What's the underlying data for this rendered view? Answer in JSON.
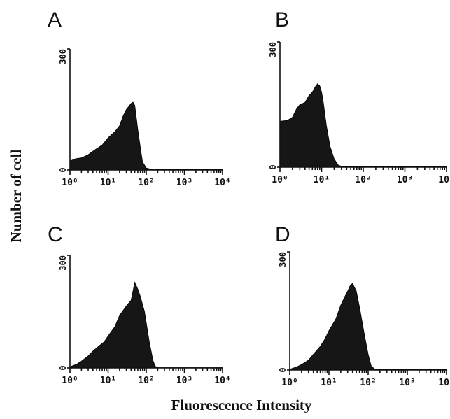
{
  "chart_data": {
    "type": "histogram-grid",
    "xlabel": "Fluorescence Intensity",
    "ylabel": "Number of cell",
    "x_scale": "log",
    "x_ticks": [
      "10⁰",
      "10¹",
      "10²",
      "10³",
      "10⁴"
    ],
    "y_ticks": [
      "0",
      "300"
    ],
    "ylim": [
      0,
      300
    ],
    "xlim": [
      1,
      10000
    ],
    "panels": [
      {
        "label": "A",
        "series": [
          {
            "x": [
              1,
              1.4,
              2,
              3,
              4.5,
              7,
              10,
              15,
              20,
              25,
              30,
              35,
              40,
              45,
              50,
              55,
              60,
              70,
              80,
              100,
              130,
              200,
              500,
              1000,
              10000
            ],
            "y": [
              22,
              28,
              30,
              38,
              50,
              62,
              80,
              95,
              110,
              135,
              150,
              158,
              165,
              168,
              160,
              130,
              100,
              55,
              20,
              5,
              2,
              1,
              1,
              1,
              1
            ]
          }
        ]
      },
      {
        "label": "B",
        "series": [
          {
            "x": [
              1,
              1.5,
              2,
              2.5,
              3,
              4,
              5,
              6,
              7,
              8,
              9,
              10,
              11,
              13,
              16,
              20,
              25,
              30,
              40,
              50,
              70,
              100,
              1000,
              10000
            ],
            "y": [
              110,
              112,
              120,
              140,
              150,
              155,
              172,
              180,
              192,
              200,
              195,
              180,
              155,
              100,
              50,
              20,
              5,
              2,
              1,
              1,
              1,
              1,
              1,
              1
            ]
          }
        ]
      },
      {
        "label": "C",
        "series": [
          {
            "x": [
              1,
              1.5,
              2,
              3,
              4,
              6,
              8,
              10,
              15,
              20,
              30,
              40,
              50,
              60,
              70,
              90,
              120,
              150,
              170,
              200,
              1000,
              10000
            ],
            "y": [
              3,
              10,
              18,
              32,
              45,
              60,
              70,
              85,
              110,
              140,
              165,
              180,
              228,
              210,
              190,
              150,
              70,
              20,
              5,
              1,
              1,
              1
            ]
          }
        ]
      },
      {
        "label": "D",
        "series": [
          {
            "x": [
              1,
              1.5,
              2,
              3,
              4,
              6,
              8,
              10,
              15,
              20,
              25,
              30,
              35,
              40,
              50,
              60,
              80,
              100,
              120,
              150,
              1000,
              10000
            ],
            "y": [
              2,
              8,
              14,
              25,
              40,
              60,
              80,
              100,
              130,
              165,
              185,
              200,
              215,
              220,
              200,
              160,
              90,
              40,
              10,
              2,
              1,
              1
            ]
          }
        ]
      }
    ]
  }
}
